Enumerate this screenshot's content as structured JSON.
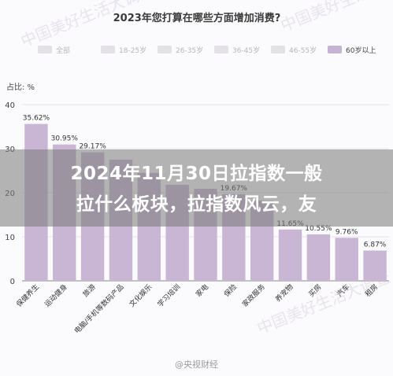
{
  "chart_data": {
    "type": "bar",
    "title": "2023年您打算在哪些方面增加消费?",
    "ylabel": "占比: %",
    "ylim": [
      0,
      40
    ],
    "yticks": [
      0,
      10,
      20,
      30,
      40
    ],
    "grid": true,
    "legend": {
      "placement": "top",
      "items": [
        {
          "label": "全部",
          "color": "#e3e0e6"
        },
        {
          "label": "18-25岁",
          "color": "#e3e0e6"
        },
        {
          "label": "26-35岁",
          "color": "#e3e0e6"
        },
        {
          "label": "36-45岁",
          "color": "#e3e0e6"
        },
        {
          "label": "46-55岁",
          "color": "#e3e0e6"
        },
        {
          "label": "60岁以上",
          "color": "#c6b2d2"
        }
      ]
    },
    "categories": [
      "保健养生",
      "运动健身",
      "旅游",
      "电脑/手机等数码产品",
      "文化娱乐",
      "学习培训",
      "家电",
      "保险",
      "家政服务",
      "养宠物",
      "买房",
      "汽车",
      "租房"
    ],
    "values": [
      35.62,
      30.95,
      29.17,
      27.5,
      24.5,
      21.8,
      20.9,
      19.67,
      18.2,
      11.65,
      10.55,
      9.76,
      6.87
    ],
    "data_labels": [
      "35.62%",
      "30.95%",
      "29.17%",
      "",
      "",
      "",
      "",
      "19.67%",
      "",
      "11.65%",
      "10.55%",
      "9.76%",
      "6.87%"
    ],
    "bar_color": "#c9b6d5"
  },
  "banner": {
    "line1": "2024年11月30日拉指数一般",
    "line2": "拉什么板块，拉指数风云，友"
  },
  "watermark": "中国美好生活大调查",
  "credit": "@央视财经"
}
